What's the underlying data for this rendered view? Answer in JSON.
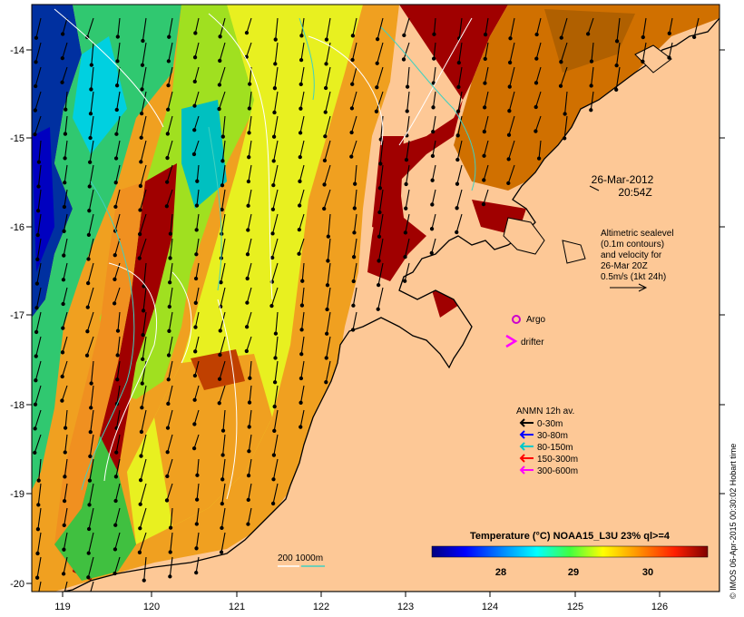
{
  "map": {
    "lon_ticks": [
      "119",
      "120",
      "121",
      "122",
      "123",
      "124",
      "125",
      "126"
    ],
    "lat_ticks": [
      "-14",
      "-15",
      "-16",
      "-17",
      "-18",
      "-19",
      "-20"
    ],
    "datetime_line1": "26-Mar-2012",
    "datetime_line2": "20:54Z",
    "altimetry_lines": [
      "Altimetric sealevel",
      "(0.1m contours)",
      "and velocity for",
      "26-Mar 20Z",
      "0.5m/s (1kt 24h)"
    ],
    "argo_label": "Argo",
    "drifter_label": "drifter",
    "depth_contour_label": "200  1000m",
    "legend": {
      "title": "ANMN 12h av.",
      "items": [
        {
          "label": "0-30m",
          "color": "#000000"
        },
        {
          "label": "30-80m",
          "color": "#0000ff"
        },
        {
          "label": "80-150m",
          "color": "#00c8c8"
        },
        {
          "label": "150-300m",
          "color": "#ff0000"
        },
        {
          "label": "300-600m",
          "color": "#ff00ff"
        }
      ]
    },
    "colorbar": {
      "title": "Temperature (°C) NOAA15_L3U 23% ql>=4",
      "ticks": [
        "28",
        "29",
        "30"
      ]
    },
    "credit": "© IMOS 06-Apr-2015 00:30:02 Hobart time",
    "colors": {
      "land": "#fdc896",
      "argo": "#cc00cc",
      "drifter": "#ff00ff"
    }
  }
}
